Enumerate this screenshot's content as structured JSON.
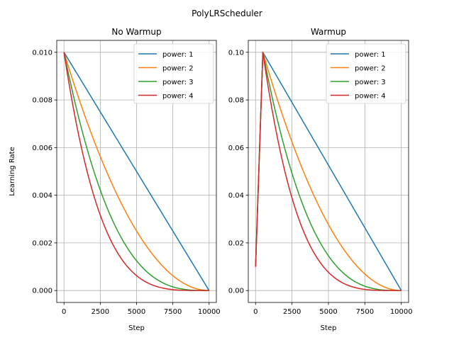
{
  "figure": {
    "suptitle": "PolyLRScheduler"
  },
  "chart_data": [
    {
      "type": "line",
      "title": "No Warmup",
      "xlabel": "Step",
      "ylabel": "Learning Rate",
      "xlim": [
        -500,
        10500
      ],
      "ylim": [
        -0.0005,
        0.0105
      ],
      "xticks": [
        0,
        2500,
        5000,
        7500,
        10000
      ],
      "xtick_labels": [
        "0",
        "2500",
        "5000",
        "7500",
        "10000"
      ],
      "yticks": [
        0,
        0.002,
        0.004,
        0.006,
        0.008,
        0.01
      ],
      "ytick_labels": [
        "0.000",
        "0.002",
        "0.004",
        "0.006",
        "0.008",
        "0.010"
      ],
      "grid": true,
      "legend": "top-right",
      "formula": {
        "initial_lr": 0.01,
        "total_steps": 10000,
        "warmup_steps": 0
      },
      "series": [
        {
          "name": "power: 1",
          "power": 1,
          "color": "#1f77b4"
        },
        {
          "name": "power: 2",
          "power": 2,
          "color": "#ff7f0e"
        },
        {
          "name": "power: 3",
          "power": 3,
          "color": "#2ca02c"
        },
        {
          "name": "power: 4",
          "power": 4,
          "color": "#d62728"
        }
      ]
    },
    {
      "type": "line",
      "title": "Warmup",
      "xlabel": "Step",
      "ylabel": "",
      "xlim": [
        -500,
        10500
      ],
      "ylim": [
        -0.005,
        0.105
      ],
      "xticks": [
        0,
        2500,
        5000,
        7500,
        10000
      ],
      "xtick_labels": [
        "0",
        "2500",
        "5000",
        "7500",
        "10000"
      ],
      "yticks": [
        0,
        0.02,
        0.04,
        0.06,
        0.08,
        0.1
      ],
      "ytick_labels": [
        "0.00",
        "0.02",
        "0.04",
        "0.06",
        "0.08",
        "0.10"
      ],
      "grid": true,
      "legend": "top-right",
      "formula": {
        "initial_lr": 0.1,
        "total_steps": 10000,
        "warmup_steps": 500,
        "warmup_start_lr": 0.01
      },
      "series": [
        {
          "name": "power: 1",
          "power": 1,
          "color": "#1f77b4"
        },
        {
          "name": "power: 2",
          "power": 2,
          "color": "#ff7f0e"
        },
        {
          "name": "power: 3",
          "power": 3,
          "color": "#2ca02c"
        },
        {
          "name": "power: 4",
          "power": 4,
          "color": "#d62728"
        }
      ]
    }
  ]
}
